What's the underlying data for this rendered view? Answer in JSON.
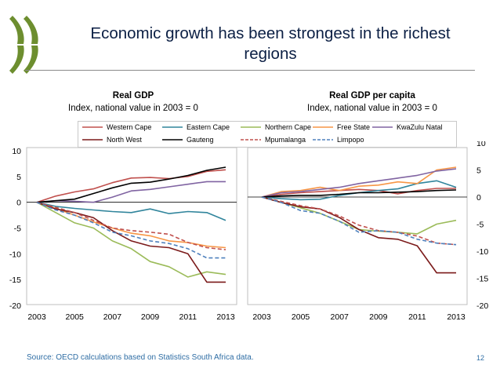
{
  "slide": {
    "title": "Economic growth has been strongest in the richest regions",
    "source": "Source: OECD calculations based on Statistics South Africa data.",
    "page_number": "12"
  },
  "panels": [
    {
      "title": "Real GDP",
      "subtitle": "Index, national value in 2003 = 0"
    },
    {
      "title": "Real GDP per capita",
      "subtitle": "Index, national value in 2003 = 0"
    }
  ],
  "legend": [
    {
      "name": "Western Cape",
      "color": "#c0504d",
      "dash": false
    },
    {
      "name": "Eastern Cape",
      "color": "#31859c",
      "dash": false
    },
    {
      "name": "Northern Cape",
      "color": "#9bbb59",
      "dash": false
    },
    {
      "name": "Free State",
      "color": "#f79646",
      "dash": false
    },
    {
      "name": "KwaZulu Natal",
      "color": "#8064a2",
      "dash": false
    },
    {
      "name": "North West",
      "color": "#7b1a1a",
      "dash": false
    },
    {
      "name": "Gauteng",
      "color": "#000000",
      "dash": false
    },
    {
      "name": "Mpumalanga",
      "color": "#c0504d",
      "dash": true
    },
    {
      "name": "Limpopo",
      "color": "#4f81bd",
      "dash": true
    }
  ],
  "chart_data": [
    {
      "type": "line",
      "title": "Real GDP",
      "subtitle": "Index, national value in 2003 = 0",
      "x": [
        2003,
        2004,
        2005,
        2006,
        2007,
        2008,
        2009,
        2010,
        2011,
        2012,
        2013
      ],
      "xticks": [
        2003,
        2005,
        2007,
        2009,
        2011,
        2013
      ],
      "yticks": [
        10,
        5,
        0,
        -5,
        -10,
        -15,
        -20
      ],
      "ylim": [
        -20,
        10
      ],
      "y_axis_side": "left",
      "series": [
        {
          "name": "Western Cape",
          "values": [
            0,
            1.2,
            2.0,
            2.6,
            3.8,
            4.7,
            4.8,
            4.6,
            5.0,
            6.0,
            6.3
          ]
        },
        {
          "name": "Eastern Cape",
          "values": [
            0,
            -0.8,
            -1.2,
            -1.5,
            -1.8,
            -2.0,
            -1.3,
            -2.2,
            -1.8,
            -2.0,
            -3.5
          ]
        },
        {
          "name": "Northern Cape",
          "values": [
            0,
            -2.0,
            -4.0,
            -5.0,
            -7.5,
            -9.0,
            -11.5,
            -12.5,
            -14.5,
            -13.5,
            -14.0
          ]
        },
        {
          "name": "Free State",
          "values": [
            0,
            -1.2,
            -2.5,
            -3.8,
            -5.0,
            -6.0,
            -6.5,
            -7.5,
            -7.8,
            -8.5,
            -8.8
          ]
        },
        {
          "name": "KwaZulu Natal",
          "values": [
            0,
            0.3,
            0.2,
            0.0,
            1.0,
            2.2,
            2.5,
            3.0,
            3.5,
            4.0,
            4.0
          ]
        },
        {
          "name": "North West",
          "values": [
            0,
            -1.3,
            -2.0,
            -3.0,
            -5.5,
            -7.5,
            -8.5,
            -8.8,
            -10.0,
            -15.5,
            -15.5
          ]
        },
        {
          "name": "Gauteng",
          "values": [
            0,
            0.3,
            0.6,
            1.7,
            2.8,
            3.7,
            3.9,
            4.5,
            5.2,
            6.2,
            6.8
          ]
        },
        {
          "name": "Mpumalanga",
          "values": [
            0,
            -1.0,
            -2.0,
            -3.5,
            -5.0,
            -5.5,
            -5.8,
            -6.2,
            -7.8,
            -8.8,
            -9.2
          ]
        },
        {
          "name": "Limpopo",
          "values": [
            0,
            -1.5,
            -2.5,
            -4.0,
            -5.8,
            -6.5,
            -7.5,
            -8.0,
            -9.0,
            -10.8,
            -10.8
          ]
        }
      ]
    },
    {
      "type": "line",
      "title": "Real GDP per capita",
      "subtitle": "Index, national value in 2003 = 0",
      "x": [
        2003,
        2004,
        2005,
        2006,
        2007,
        2008,
        2009,
        2010,
        2011,
        2012,
        2013
      ],
      "xticks": [
        2003,
        2005,
        2007,
        2009,
        2011,
        2013
      ],
      "yticks": [
        10,
        5,
        0,
        -5,
        -10,
        -15,
        -20
      ],
      "ylim": [
        -20,
        10
      ],
      "y_axis_side": "right",
      "series": [
        {
          "name": "Western Cape",
          "values": [
            0,
            0.5,
            0.8,
            1.0,
            1.2,
            1.4,
            1.2,
            0.6,
            1.2,
            1.6,
            1.6
          ]
        },
        {
          "name": "Eastern Cape",
          "values": [
            0,
            -0.3,
            -0.5,
            -0.4,
            0.3,
            0.8,
            1.2,
            1.5,
            2.5,
            3.0,
            1.8
          ]
        },
        {
          "name": "Northern Cape",
          "values": [
            0,
            -1.0,
            -2.0,
            -3.0,
            -4.5,
            -6.0,
            -6.3,
            -6.5,
            -6.8,
            -5.0,
            -4.3
          ]
        },
        {
          "name": "Free State",
          "values": [
            0,
            1.0,
            1.2,
            1.8,
            1.2,
            2.0,
            2.2,
            2.8,
            2.5,
            5.0,
            5.5
          ]
        },
        {
          "name": "KwaZulu Natal",
          "values": [
            0,
            0.8,
            1.0,
            1.4,
            1.8,
            2.5,
            3.0,
            3.5,
            4.0,
            4.8,
            5.2
          ]
        },
        {
          "name": "North West",
          "values": [
            0,
            -1.0,
            -1.8,
            -2.2,
            -3.8,
            -6.0,
            -7.5,
            -7.8,
            -9.0,
            -14.0,
            -14.0
          ]
        },
        {
          "name": "Gauteng",
          "values": [
            0,
            0.2,
            0.3,
            0.3,
            0.5,
            0.8,
            0.8,
            0.9,
            1.0,
            1.2,
            1.3
          ]
        },
        {
          "name": "Mpumalanga",
          "values": [
            0,
            -0.8,
            -1.6,
            -2.2,
            -3.5,
            -5.2,
            -6.2,
            -6.5,
            -7.2,
            -8.5,
            -8.8
          ]
        },
        {
          "name": "Limpopo",
          "values": [
            0,
            -1.0,
            -2.5,
            -3.0,
            -4.5,
            -6.5,
            -6.2,
            -6.5,
            -7.8,
            -8.5,
            -8.8
          ]
        }
      ]
    }
  ]
}
